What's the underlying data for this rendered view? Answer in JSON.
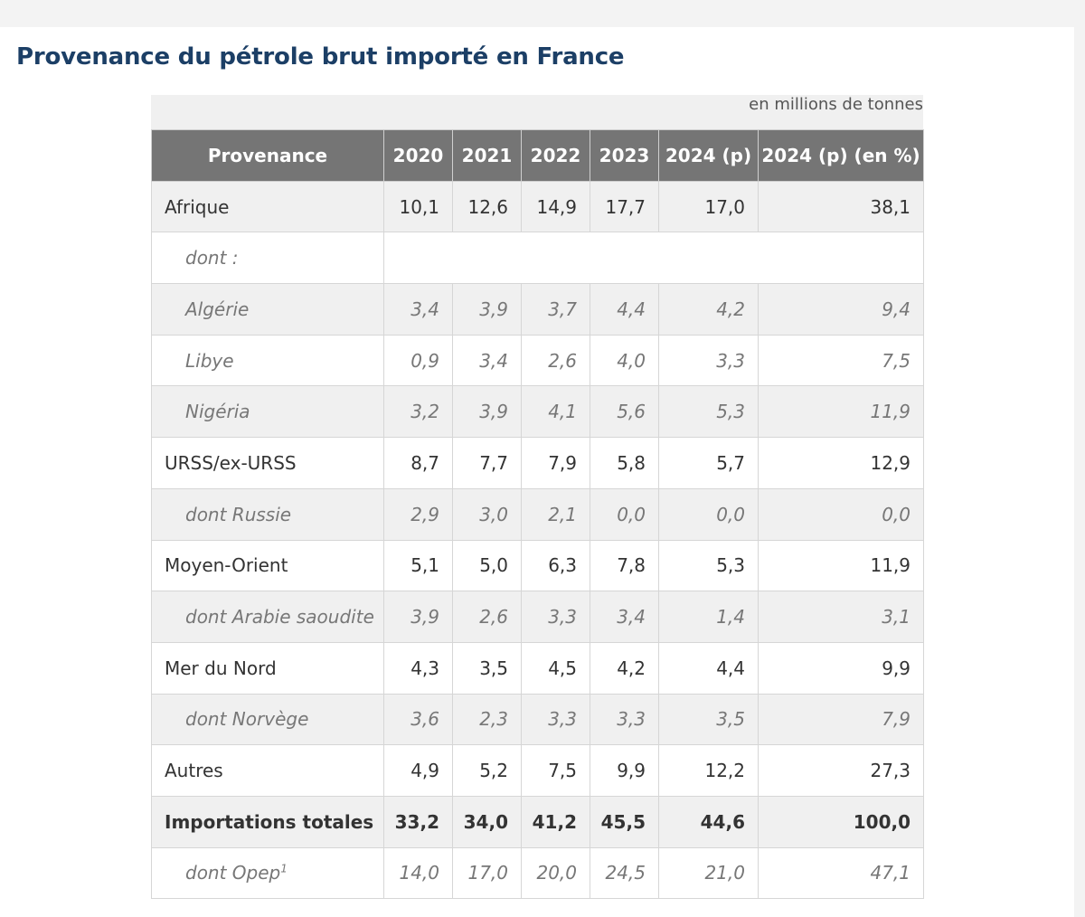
{
  "title": "Provenance du pétrole brut importé en France",
  "unit_note": "en millions de tonnes",
  "table": {
    "headers": [
      "Provenance",
      "2020",
      "2021",
      "2022",
      "2023",
      "2024 (p)",
      "2024 (p) (en %)"
    ],
    "rows": [
      {
        "label": "Afrique",
        "values": [
          "10,1",
          "12,6",
          "14,9",
          "17,7",
          "17,0",
          "38,1"
        ]
      },
      {
        "label": "dont :",
        "values": []
      },
      {
        "label": "Algérie",
        "values": [
          "3,4",
          "3,9",
          "3,7",
          "4,4",
          "4,2",
          "9,4"
        ]
      },
      {
        "label": "Libye",
        "values": [
          "0,9",
          "3,4",
          "2,6",
          "4,0",
          "3,3",
          "7,5"
        ]
      },
      {
        "label": "Nigéria",
        "values": [
          "3,2",
          "3,9",
          "4,1",
          "5,6",
          "5,3",
          "11,9"
        ]
      },
      {
        "label": "URSS/ex-URSS",
        "values": [
          "8,7",
          "7,7",
          "7,9",
          "5,8",
          "5,7",
          "12,9"
        ]
      },
      {
        "label": "dont Russie",
        "values": [
          "2,9",
          "3,0",
          "2,1",
          "0,0",
          "0,0",
          "0,0"
        ]
      },
      {
        "label": "Moyen-Orient",
        "values": [
          "5,1",
          "5,0",
          "6,3",
          "7,8",
          "5,3",
          "11,9"
        ]
      },
      {
        "label": "dont Arabie saoudite",
        "values": [
          "3,9",
          "2,6",
          "3,3",
          "3,4",
          "1,4",
          "3,1"
        ]
      },
      {
        "label": "Mer du Nord",
        "values": [
          "4,3",
          "3,5",
          "4,5",
          "4,2",
          "4,4",
          "9,9"
        ]
      },
      {
        "label": "dont Norvège",
        "values": [
          "3,6",
          "2,3",
          "3,3",
          "3,3",
          "3,5",
          "7,9"
        ]
      },
      {
        "label": "Autres",
        "values": [
          "4,9",
          "5,2",
          "7,5",
          "9,9",
          "12,2",
          "27,3"
        ]
      },
      {
        "label": "Importations totales",
        "values": [
          "33,2",
          "34,0",
          "41,2",
          "45,5",
          "44,6",
          "100,0"
        ]
      },
      {
        "label": "dont Opep",
        "note_marker": "1",
        "values": [
          "14,0",
          "17,0",
          "20,0",
          "24,5",
          "21,0",
          "47,1"
        ]
      }
    ]
  }
}
